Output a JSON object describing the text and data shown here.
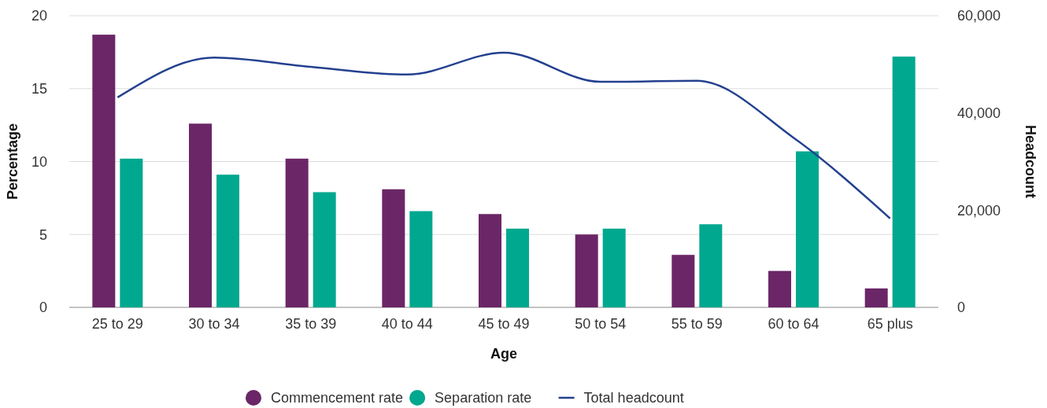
{
  "chart_data": {
    "type": "bar",
    "xlabel": "Age",
    "ylabel": "Percentage",
    "y2label": "Headcount",
    "categories": [
      "25 to 29",
      "30 to 34",
      "35 to 39",
      "40 to 44",
      "45 to 49",
      "50 to 54",
      "55 to 59",
      "60 to 64",
      "65 plus"
    ],
    "series": [
      {
        "name": "Commencement rate",
        "color": "#6b2667",
        "values": [
          18.7,
          12.6,
          10.2,
          8.1,
          6.4,
          5.0,
          3.6,
          2.5,
          1.3
        ]
      },
      {
        "name": "Separation rate",
        "color": "#00a88f",
        "values": [
          10.2,
          9.1,
          7.9,
          6.6,
          5.4,
          5.4,
          5.7,
          10.7,
          17.2
        ]
      },
      {
        "name": "Total headcount",
        "type": "line",
        "axis": "y2",
        "color": "#24418f",
        "values": [
          43200,
          51400,
          49500,
          47900,
          52400,
          46400,
          46600,
          34900,
          18300
        ]
      }
    ],
    "ylim": [
      0,
      20
    ],
    "yticks": [
      0,
      5,
      10,
      15,
      20
    ],
    "y2lim": [
      0,
      60000
    ],
    "y2ticks": [
      {
        "value": 0,
        "label": "0"
      },
      {
        "value": 20000,
        "label": "20,000"
      },
      {
        "value": 40000,
        "label": "40,000"
      },
      {
        "value": 60000,
        "label": "60,000"
      }
    ],
    "grid": "y",
    "legend": "bottom",
    "marker": "none"
  }
}
